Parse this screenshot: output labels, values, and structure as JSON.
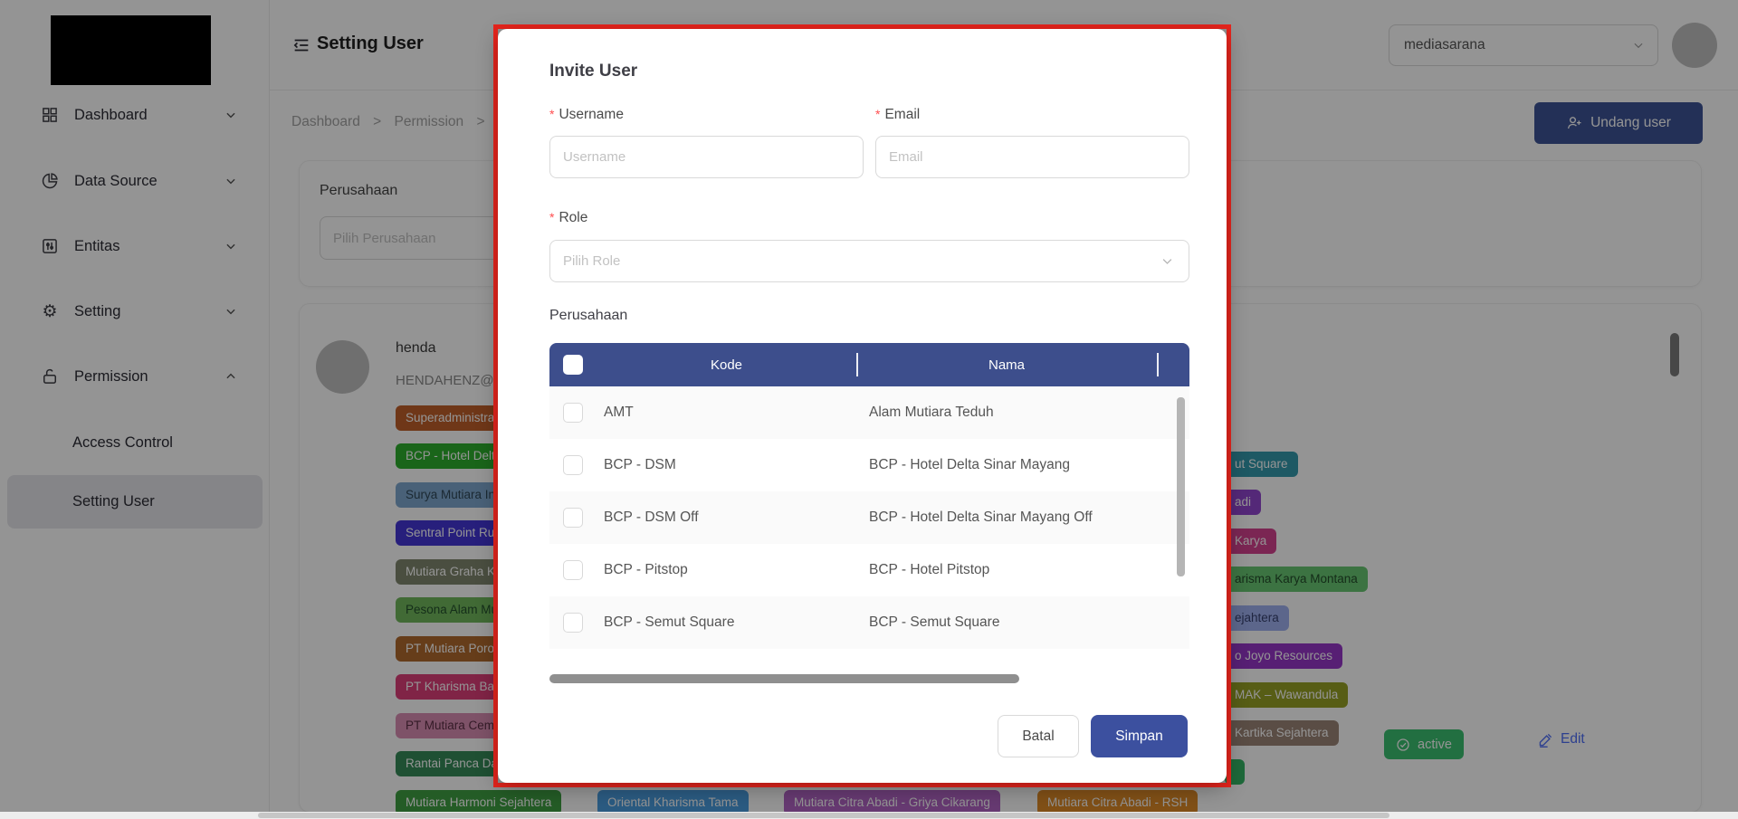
{
  "sidebar": {
    "menu": [
      {
        "label": "Dashboard"
      },
      {
        "label": "Data Source"
      },
      {
        "label": "Entitas"
      },
      {
        "label": "Setting"
      },
      {
        "label": "Permission"
      }
    ],
    "submenu": [
      {
        "label": "Access Control"
      },
      {
        "label": "Setting User"
      }
    ]
  },
  "topbar": {
    "title": "Setting User",
    "org": "mediasarana"
  },
  "breadcrumb": {
    "items": [
      "Dashboard",
      "Permission"
    ],
    "separator": ">"
  },
  "toolbar": {
    "invite_label": "Undang user"
  },
  "filter_card": {
    "label": "Perusahaan",
    "placeholder": "Pilih Perusahaan"
  },
  "user_card": {
    "name": "henda",
    "email": "HENDAHENZ@g",
    "status_label": "active",
    "edit_label": "Edit",
    "tags_left": [
      {
        "text": "Superadministrato",
        "color": "#c05f2a"
      },
      {
        "text": "BCP - Hotel Delta",
        "color": "#2eae2e"
      },
      {
        "text": "Surya Mutiara Ind",
        "color": "#7fa8cf",
        "text_color": "#2f4858"
      },
      {
        "text": "Sentral Point Rung",
        "color": "#4436d6"
      },
      {
        "text": "Mutiara Graha Ke",
        "color": "#80876f"
      },
      {
        "text": "Pesona Alam Mu",
        "color": "#71b75c",
        "text_color": "#24502c"
      },
      {
        "text": "PT Mutiara Porong",
        "color": "#b06a2e"
      },
      {
        "text": "PT Kharisma Bang",
        "color": "#dd3f79"
      },
      {
        "text": "PT Mutiara Cemer",
        "color": "#d98eb4",
        "text_color": "#5a2f44"
      },
      {
        "text": "Rantai Panca Daya",
        "color": "#368a58"
      },
      {
        "text": "Mutiara Harmoni Sejahtera",
        "color": "#3f9f43"
      }
    ],
    "tags_right": [
      {
        "text": "ut Square",
        "color": "#359aad"
      },
      {
        "text": "adi",
        "color": "#9146cf"
      },
      {
        "text": "Karya",
        "color": "#d4438f"
      },
      {
        "text": "arisma Karya Montana",
        "color": "#68c672",
        "text_color": "#234d2a"
      },
      {
        "text": "ejahtera",
        "color": "#9fb0f0",
        "text_color": "#36406e"
      },
      {
        "text": "o Joyo Resources",
        "color": "#9636c9"
      },
      {
        "text": "MAK – Wawandula",
        "color": "#97a025"
      },
      {
        "text": "Kartika Sejahtera",
        "color": "#9c8578"
      },
      {
        "text": "",
        "color": "#35b565",
        "width": 14
      }
    ],
    "tags_bottom": [
      {
        "text": "Oriental Kharisma Tama",
        "color": "#4a9de0"
      },
      {
        "text": "Mutiara Citra Abadi - Griya Cikarang",
        "color": "#b264c4"
      },
      {
        "text": "Mutiara Citra Abadi - RSH",
        "color": "#df8b28"
      }
    ]
  },
  "modal": {
    "title": "Invite User",
    "username_label": "Username",
    "username_placeholder": "Username",
    "email_label": "Email",
    "email_placeholder": "Email",
    "role_label": "Role",
    "role_placeholder": "Pilih Role",
    "company_label": "Perusahaan",
    "table": {
      "columns": [
        "Kode",
        "Nama"
      ],
      "rows": [
        {
          "kode": "AMT",
          "nama": "Alam Mutiara Teduh"
        },
        {
          "kode": "BCP - DSM",
          "nama": "BCP - Hotel Delta Sinar Mayang"
        },
        {
          "kode": "BCP - DSM Off",
          "nama": "BCP - Hotel Delta Sinar Mayang Off"
        },
        {
          "kode": "BCP - Pitstop",
          "nama": "BCP - Hotel Pitstop"
        },
        {
          "kode": "BCP - Semut Square",
          "nama": "BCP - Semut Square"
        }
      ]
    },
    "cancel_label": "Batal",
    "submit_label": "Simpan"
  },
  "colors": {
    "table_header": "#3d4e8c",
    "submit_button": "#3c509f",
    "invite_button": "#3d5496",
    "active_badge": "#3bbf70",
    "edit_link": "#4f6ef7",
    "annotation_border": "#e8251d"
  }
}
